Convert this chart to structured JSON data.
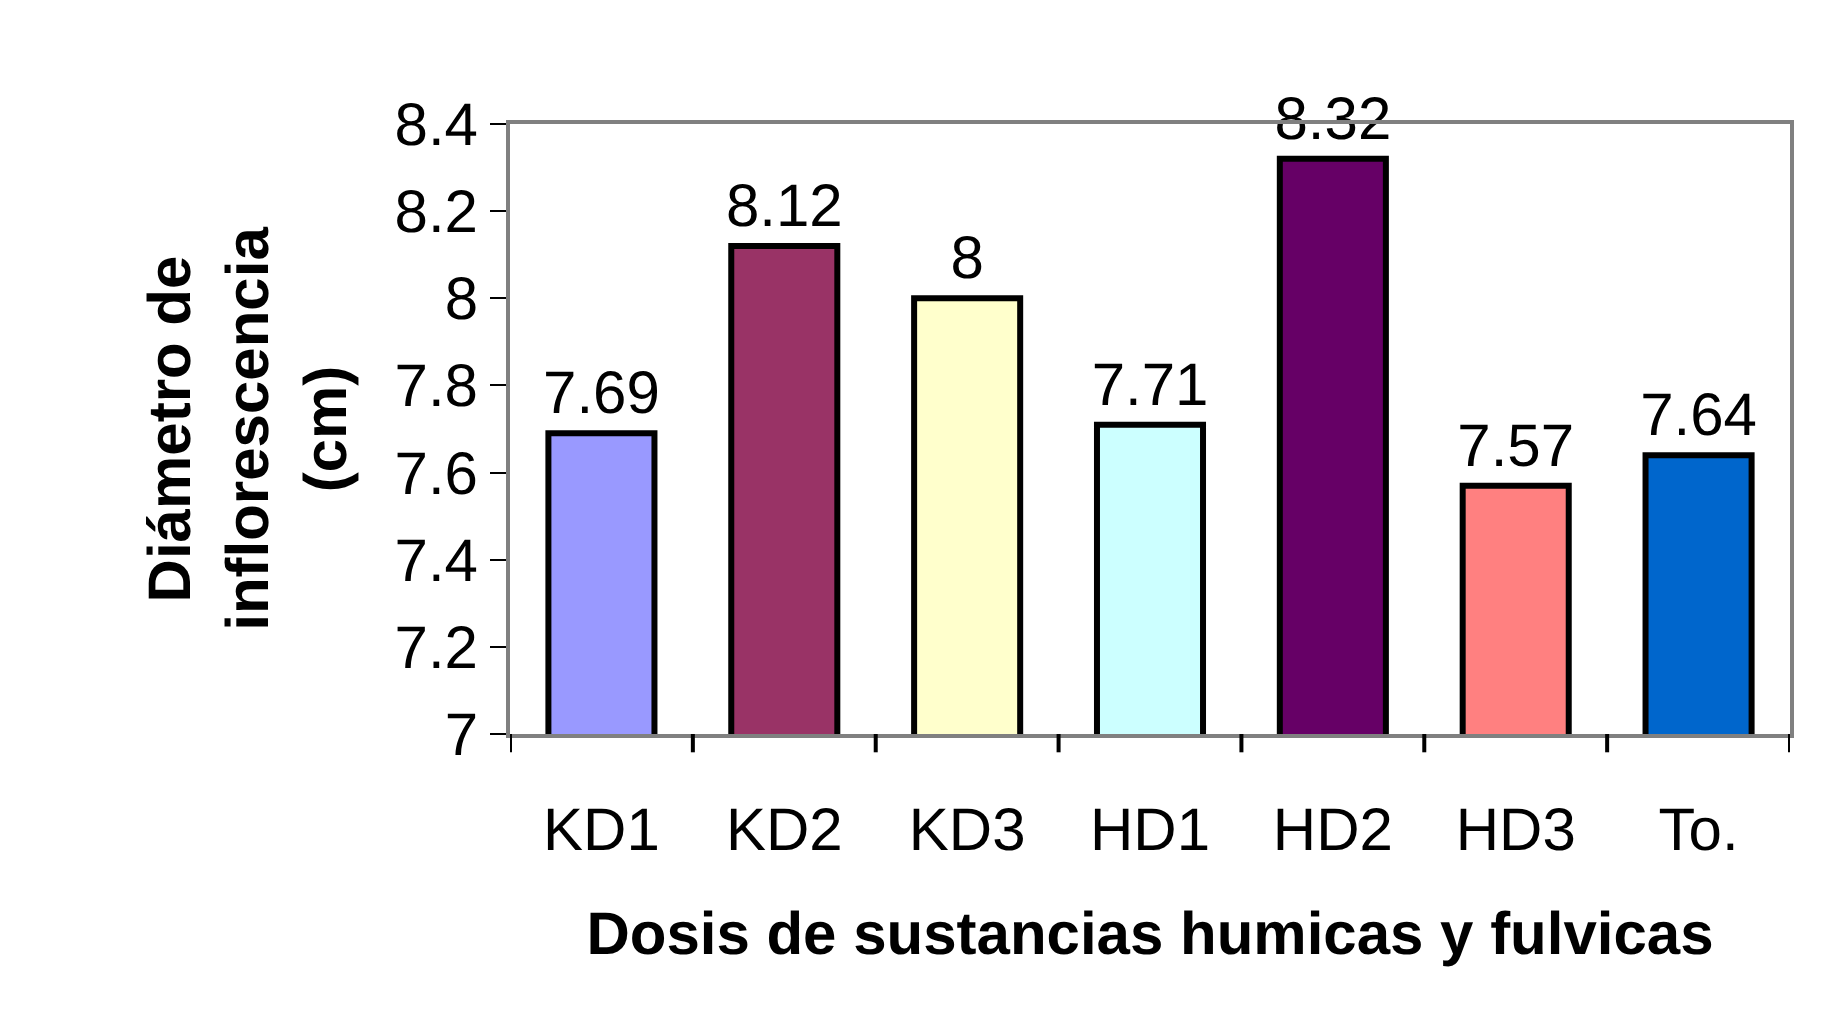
{
  "chart_data": {
    "type": "bar",
    "xlabel": "Dosis de sustancias humicas y fulvicas",
    "ylabel": "Diámetro de\ninflorescencia\n(cm)",
    "categories": [
      "KD1",
      "KD2",
      "KD3",
      "HD1",
      "HD2",
      "HD3",
      "To."
    ],
    "values": [
      7.69,
      8.12,
      8,
      7.71,
      8.32,
      7.57,
      7.64
    ],
    "colors": [
      "#9999ff",
      "#993366",
      "#ffffcc",
      "#ccffff",
      "#660066",
      "#ff8080",
      "#0066cc"
    ],
    "ylim": [
      7,
      8.4
    ],
    "yticks": [
      7,
      7.2,
      7.4,
      7.6,
      7.8,
      8,
      8.2,
      8.4
    ],
    "data_labels": true
  }
}
